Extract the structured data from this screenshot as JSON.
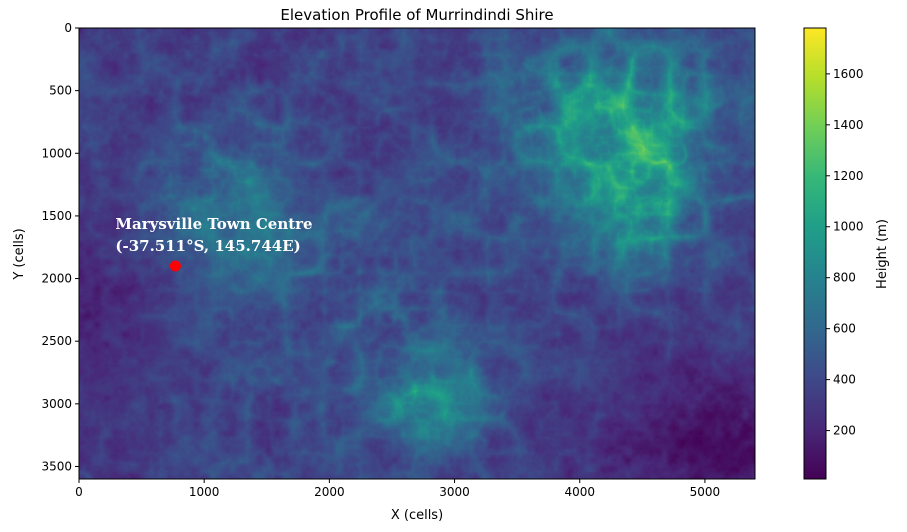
{
  "chart_data": {
    "type": "heatmap",
    "title": "Elevation Profile of Murrindindi Shire",
    "xlabel": "X (cells)",
    "ylabel": "Y (cells)",
    "xlim": [
      0,
      5400
    ],
    "ylim": [
      3600,
      0
    ],
    "x_ticks": [
      0,
      1000,
      2000,
      3000,
      4000,
      5000
    ],
    "y_ticks": [
      0,
      500,
      1000,
      1500,
      2000,
      2500,
      3000,
      3500
    ],
    "colorbar": {
      "label": "Height (m)",
      "colormap": "viridis",
      "range": [
        10,
        1780
      ],
      "ticks": [
        200,
        400,
        600,
        800,
        1000,
        1200,
        1400,
        1600
      ]
    },
    "grid": false,
    "annotation": {
      "label_line1": "Marysville Town Centre",
      "label_line2": "(-37.511°S, 145.744E)",
      "x": 770,
      "y": 1900,
      "marker_color": "#ff0000",
      "text_color": "#ffffff"
    },
    "colors": {
      "viridis_stops": [
        "#440154",
        "#482878",
        "#3e4989",
        "#31688e",
        "#26828e",
        "#1f9e89",
        "#35b779",
        "#6ece58",
        "#b5de2b",
        "#fde725"
      ]
    }
  }
}
